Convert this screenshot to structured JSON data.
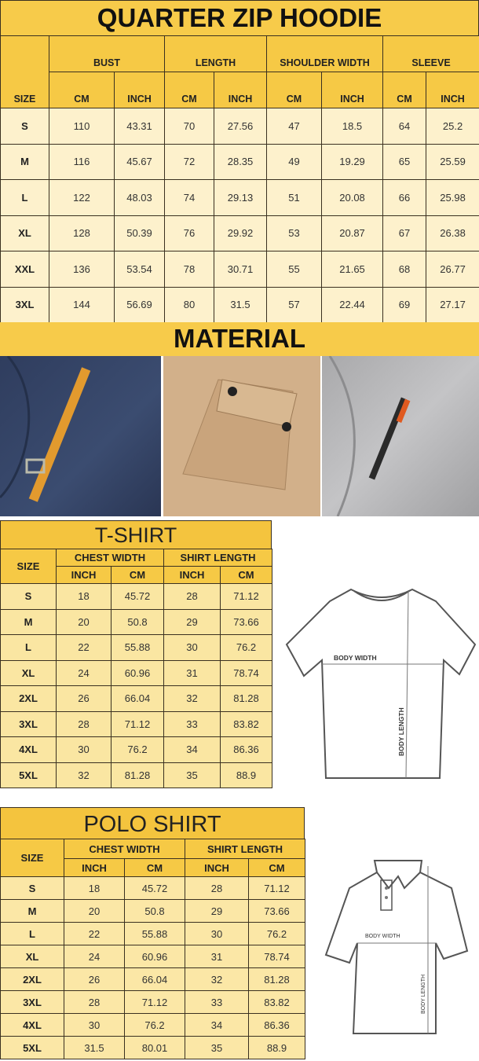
{
  "hoodie": {
    "title": "QUARTER ZIP HOODIE",
    "groups": [
      "SIZE",
      "BUST",
      "LENGTH",
      "SHOULDER WIDTH",
      "SLEEVE"
    ],
    "units": [
      "CM",
      "INCH",
      "CM",
      "INCH",
      "CM",
      "INCH",
      "CM",
      "INCH"
    ],
    "rows": [
      [
        "S",
        "110",
        "43.31",
        "70",
        "27.56",
        "47",
        "18.5",
        "64",
        "25.2"
      ],
      [
        "M",
        "116",
        "45.67",
        "72",
        "28.35",
        "49",
        "19.29",
        "65",
        "25.59"
      ],
      [
        "L",
        "122",
        "48.03",
        "74",
        "29.13",
        "51",
        "20.08",
        "66",
        "25.98"
      ],
      [
        "XL",
        "128",
        "50.39",
        "76",
        "29.92",
        "53",
        "20.87",
        "67",
        "26.38"
      ],
      [
        "XXL",
        "136",
        "53.54",
        "78",
        "30.71",
        "55",
        "21.65",
        "68",
        "26.77"
      ],
      [
        "3XL",
        "144",
        "56.69",
        "80",
        "31.5",
        "57",
        "22.44",
        "69",
        "27.17"
      ]
    ]
  },
  "material": {
    "title": "MATERIAL"
  },
  "tshirt": {
    "title": "T-SHIRT",
    "groups": [
      "SIZE",
      "CHEST WIDTH",
      "SHIRT LENGTH"
    ],
    "units": [
      "INCH",
      "CM",
      "INCH",
      "CM"
    ],
    "rows": [
      [
        "S",
        "18",
        "45.72",
        "28",
        "71.12"
      ],
      [
        "M",
        "20",
        "50.8",
        "29",
        "73.66"
      ],
      [
        "L",
        "22",
        "55.88",
        "30",
        "76.2"
      ],
      [
        "XL",
        "24",
        "60.96",
        "31",
        "78.74"
      ],
      [
        "2XL",
        "26",
        "66.04",
        "32",
        "81.28"
      ],
      [
        "3XL",
        "28",
        "71.12",
        "33",
        "83.82"
      ],
      [
        "4XL",
        "30",
        "76.2",
        "34",
        "86.36"
      ],
      [
        "5XL",
        "32",
        "81.28",
        "35",
        "88.9"
      ]
    ],
    "diagram": {
      "width_label": "BODY WIDTH",
      "length_label": "BODY LENGTH"
    }
  },
  "polo": {
    "title": "POLO SHIRT",
    "groups": [
      "SIZE",
      "CHEST WIDTH",
      "SHIRT LENGTH"
    ],
    "units": [
      "INCH",
      "CM",
      "INCH",
      "CM"
    ],
    "rows": [
      [
        "S",
        "18",
        "45.72",
        "28",
        "71.12"
      ],
      [
        "M",
        "20",
        "50.8",
        "29",
        "73.66"
      ],
      [
        "L",
        "22",
        "55.88",
        "30",
        "76.2"
      ],
      [
        "XL",
        "24",
        "60.96",
        "31",
        "78.74"
      ],
      [
        "2XL",
        "26",
        "66.04",
        "32",
        "81.28"
      ],
      [
        "3XL",
        "28",
        "71.12",
        "33",
        "83.82"
      ],
      [
        "4XL",
        "30",
        "76.2",
        "34",
        "86.36"
      ],
      [
        "5XL",
        "31.5",
        "80.01",
        "35",
        "88.9"
      ]
    ],
    "diagram": {
      "width_label": "BODY WIDTH",
      "length_label": "BODY LENGTH"
    }
  }
}
